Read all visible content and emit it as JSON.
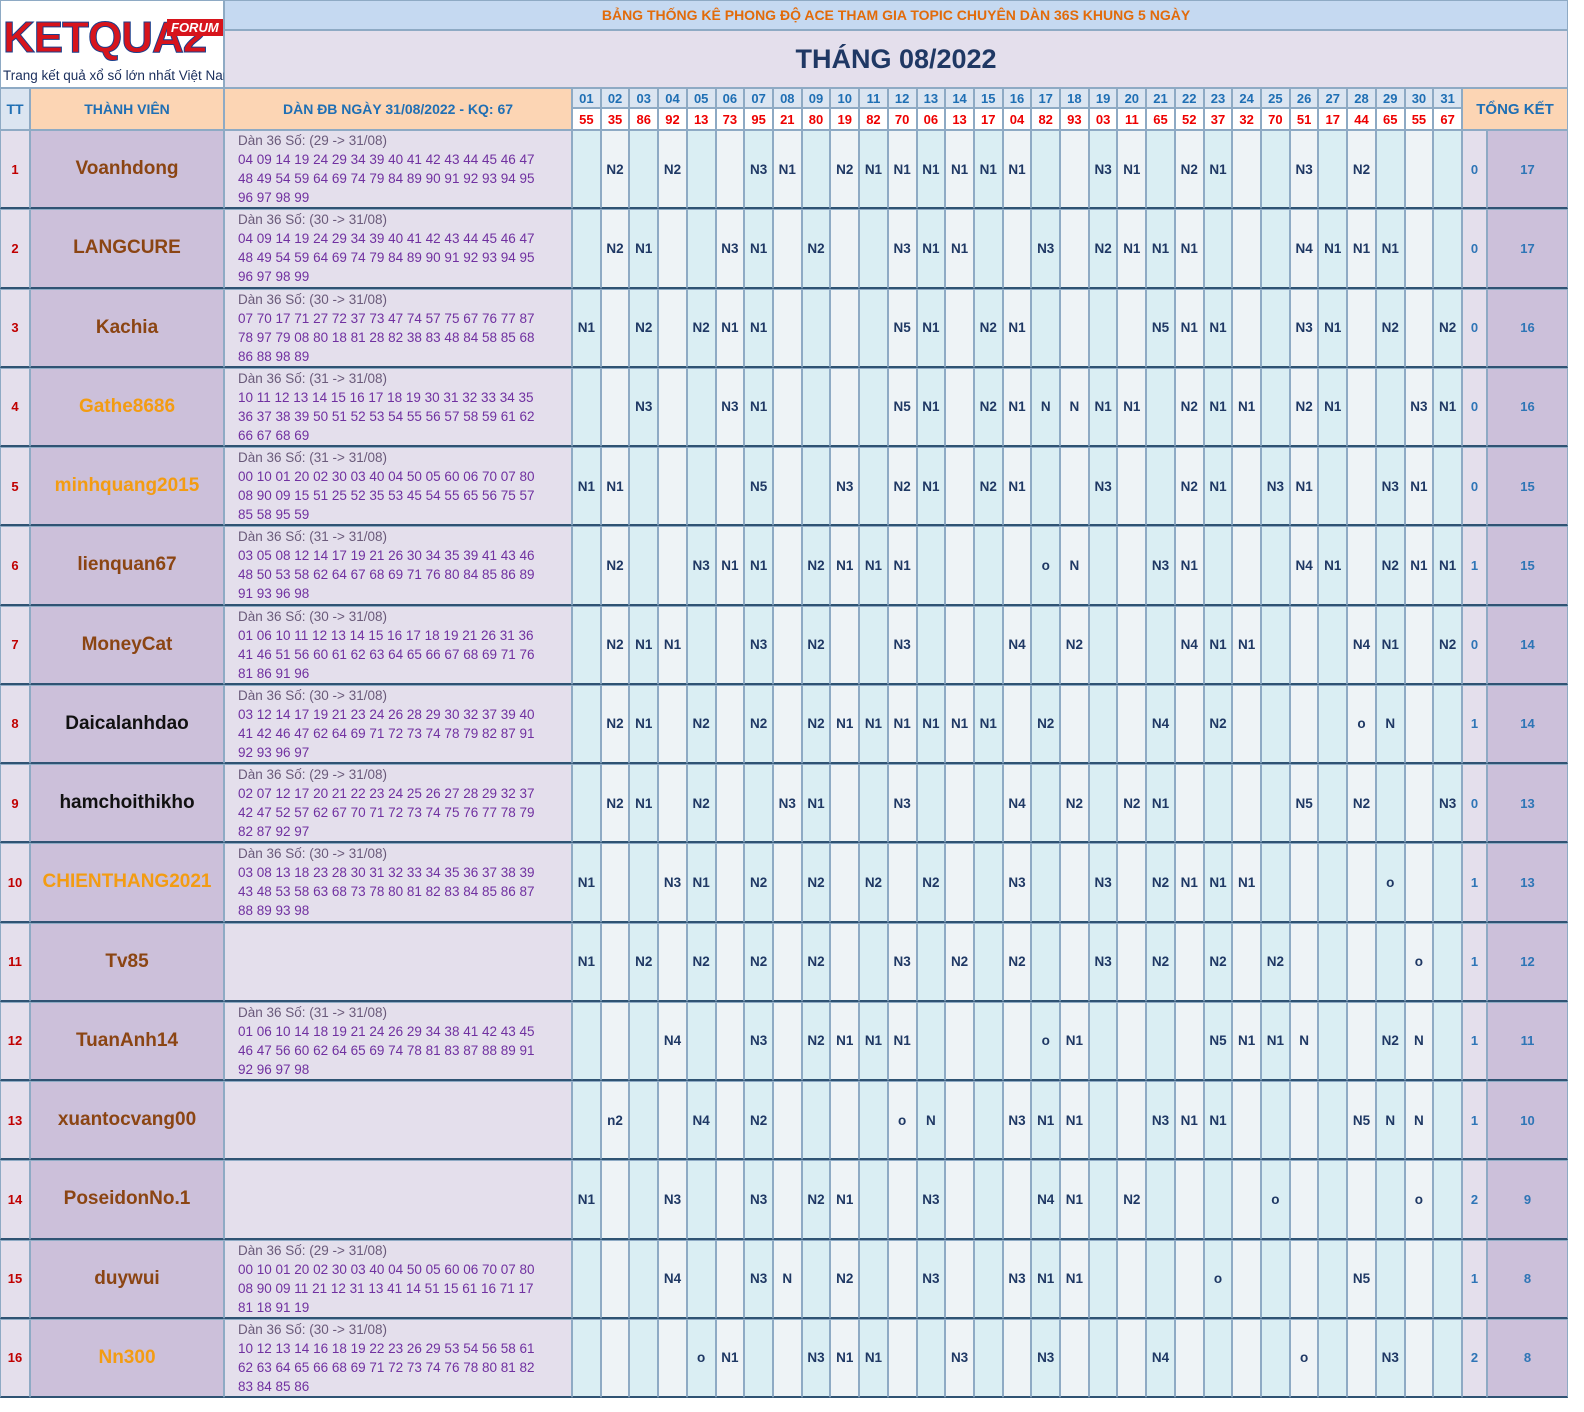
{
  "logo": {
    "brand": "KETQUA2",
    "badge": "FORUM",
    "tagline": "Trang kết quả xổ số lớn nhất Việt Nam"
  },
  "header": {
    "title": "BẢNG THỐNG KÊ PHONG ĐỘ ACE THAM GIA TOPIC CHUYÊN DÀN 36S KHUNG 5 NGÀY",
    "month": "THÁNG 08/2022"
  },
  "table": {
    "columns": {
      "tt": "TT",
      "member": "THÀNH VIÊN",
      "dan": "DÀN ĐB NGÀY 31/08/2022 - KQ: 67",
      "total": "TỔNG KẾT"
    },
    "days": [
      "01",
      "02",
      "03",
      "04",
      "05",
      "06",
      "07",
      "08",
      "09",
      "10",
      "11",
      "12",
      "13",
      "14",
      "15",
      "16",
      "17",
      "18",
      "19",
      "20",
      "21",
      "22",
      "23",
      "24",
      "25",
      "26",
      "27",
      "28",
      "29",
      "30",
      "31"
    ],
    "results": [
      "55",
      "35",
      "86",
      "92",
      "13",
      "73",
      "95",
      "21",
      "80",
      "19",
      "82",
      "70",
      "06",
      "13",
      "17",
      "04",
      "82",
      "93",
      "03",
      "11",
      "65",
      "52",
      "37",
      "32",
      "70",
      "51",
      "17",
      "44",
      "65",
      "55",
      "67"
    ],
    "rows": [
      {
        "tt": 1,
        "name": "Voanhdong",
        "color": "#8b4513",
        "dan": [
          "Dàn 36 Số: (29 -> 31/08)",
          "04 09 14 19 24 29 34 39 40 41 42 43 44 45 46 47",
          "48 49 54 59 64 69 74 79 84 89 90 91 92 93 94 95",
          "96 97 98 99"
        ],
        "marks": [
          null,
          "N2",
          null,
          "N2",
          null,
          null,
          "N3",
          "N1",
          null,
          "N2",
          "N1",
          "N1",
          "N1",
          "N1",
          "N1",
          "N1",
          null,
          null,
          "N3",
          "N1",
          null,
          "N2",
          "N1",
          null,
          null,
          "N3",
          null,
          "N2",
          null,
          null,
          null
        ],
        "total1": 0,
        "total2": 17
      },
      {
        "tt": 2,
        "name": "LANGCURE",
        "color": "#8b4513",
        "dan": [
          "Dàn 36 Số: (30 -> 31/08)",
          "04 09 14 19 24 29 34 39 40 41 42 43 44 45 46 47",
          "48 49 54 59 64 69 74 79 84 89 90 91 92 93 94 95",
          "96 97 98 99"
        ],
        "marks": [
          null,
          "N2",
          "N1",
          null,
          null,
          "N3",
          "N1",
          null,
          "N2",
          null,
          null,
          "N3",
          "N1",
          "N1",
          null,
          null,
          "N3",
          null,
          "N2",
          "N1",
          "N1",
          "N1",
          null,
          null,
          null,
          "N4",
          "N1",
          "N1",
          "N1",
          null,
          null
        ],
        "total1": 0,
        "total2": 17
      },
      {
        "tt": 3,
        "name": "Kachia",
        "color": "#8b4513",
        "dan": [
          "Dàn 36 Số: (30 -> 31/08)",
          "07 70 17 71 27 72 37 73 47 74 57 75 67 76 77 87",
          "78 97 79 08 80 18 81 28 82 38 83 48 84 58 85 68",
          "86 88 98 89"
        ],
        "marks": [
          "N1",
          null,
          "N2",
          null,
          "N2",
          "N1",
          "N1",
          null,
          null,
          null,
          null,
          "N5",
          "N1",
          null,
          "N2",
          "N1",
          null,
          null,
          null,
          null,
          "N5",
          "N1",
          "N1",
          null,
          null,
          "N3",
          "N1",
          null,
          "N2",
          null,
          "N2"
        ],
        "total1": 0,
        "total2": 16
      },
      {
        "tt": 4,
        "name": "Gathe8686",
        "color": "#f39c12",
        "dan": [
          "Dàn 36 Số: (31 -> 31/08)",
          "10 11 12 13 14 15 16 17 18 19 30 31 32 33 34 35",
          "36 37 38 39 50 51 52 53 54 55 56 57 58 59 61 62",
          "66 67 68 69"
        ],
        "marks": [
          null,
          null,
          "N3",
          null,
          null,
          "N3",
          "N1",
          null,
          null,
          null,
          null,
          "N5",
          "N1",
          null,
          "N2",
          "N1",
          "N",
          "N",
          "N1",
          "N1",
          null,
          "N2",
          "N1",
          "N1",
          null,
          "N2",
          "N1",
          null,
          null,
          "N3",
          "N1"
        ],
        "total1": 0,
        "total2": 16
      },
      {
        "tt": 5,
        "name": "minhquang2015",
        "color": "#f39c12",
        "dan": [
          "Dàn 36 Số: (31 -> 31/08)",
          "00 10 01 20 02 30 03 40 04 50 05 60 06 70 07 80",
          "08 90 09 15 51 25 52 35 53 45 54 55 65 56 75 57",
          "85 58 95 59"
        ],
        "marks": [
          "N1",
          "N1",
          null,
          null,
          null,
          null,
          "N5",
          null,
          null,
          "N3",
          null,
          "N2",
          "N1",
          null,
          "N2",
          "N1",
          null,
          null,
          "N3",
          null,
          null,
          "N2",
          "N1",
          null,
          "N3",
          "N1",
          null,
          null,
          "N3",
          "N1",
          null
        ],
        "total1": 0,
        "total2": 15
      },
      {
        "tt": 6,
        "name": "lienquan67",
        "color": "#8b4513",
        "dan": [
          "Dàn 36 Số: (31 -> 31/08)",
          "03 05 08 12 14 17 19 21 26 30 34 35 39 41 43 46",
          "48 50 53 58 62 64 67 68 69 71 76 80 84 85 86 89",
          "91 93 96 98"
        ],
        "marks": [
          null,
          "N2",
          null,
          null,
          "N3",
          "N1",
          "N1",
          null,
          "N2",
          "N1",
          "N1",
          "N1",
          null,
          null,
          null,
          null,
          "o",
          "N",
          null,
          null,
          "N3",
          "N1",
          null,
          null,
          null,
          "N4",
          "N1",
          null,
          "N2",
          "N1",
          "N1"
        ],
        "total1": 1,
        "total2": 15
      },
      {
        "tt": 7,
        "name": "MoneyCat",
        "color": "#8b4513",
        "dan": [
          "Dàn 36 Số: (30 -> 31/08)",
          "01 06 10 11 12 13 14 15 16 17 18 19 21 26 31 36",
          "41 46 51 56 60 61 62 63 64 65 66 67 68 69 71 76",
          "81 86 91 96"
        ],
        "marks": [
          null,
          "N2",
          "N1",
          "N1",
          null,
          null,
          "N3",
          null,
          "N2",
          null,
          null,
          "N3",
          null,
          null,
          null,
          "N4",
          null,
          "N2",
          null,
          null,
          null,
          "N4",
          "N1",
          "N1",
          null,
          null,
          null,
          "N4",
          "N1",
          null,
          "N2"
        ],
        "total1": 0,
        "total2": 14
      },
      {
        "tt": 8,
        "name": "Daicalanhdao",
        "color": "#111111",
        "dan": [
          "Dàn 36 Số: (30 -> 31/08)",
          "03 12 14 17 19 21 23 24 26 28 29 30 32 37 39 40",
          "41 42 46 47 62 64 69 71 72 73 74 78 79 82 87 91",
          "92 93 96 97"
        ],
        "marks": [
          null,
          "N2",
          "N1",
          null,
          "N2",
          null,
          "N2",
          null,
          "N2",
          "N1",
          "N1",
          "N1",
          "N1",
          "N1",
          "N1",
          null,
          "N2",
          null,
          null,
          null,
          "N4",
          null,
          "N2",
          null,
          null,
          null,
          null,
          "o",
          "N",
          null,
          null
        ],
        "total1": 1,
        "total2": 14
      },
      {
        "tt": 9,
        "name": "hamchoithikho",
        "color": "#111111",
        "dan": [
          "Dàn 36 Số: (29 -> 31/08)",
          "02 07 12 17 20 21 22 23 24 25 26 27 28 29 32 37",
          "42 47 52 57 62 67 70 71 72 73 74 75 76 77 78 79",
          "82 87 92 97"
        ],
        "marks": [
          null,
          "N2",
          "N1",
          null,
          "N2",
          null,
          null,
          "N3",
          "N1",
          null,
          null,
          "N3",
          null,
          null,
          null,
          "N4",
          null,
          "N2",
          null,
          "N2",
          "N1",
          null,
          null,
          null,
          null,
          "N5",
          null,
          "N2",
          null,
          null,
          "N3"
        ],
        "total1": 0,
        "total2": 13
      },
      {
        "tt": 10,
        "name": "CHIENTHANG2021",
        "color": "#f39c12",
        "dan": [
          "Dàn 36 Số: (30 -> 31/08)",
          "03 08 13 18 23 28 30 31 32 33 34 35 36 37 38 39",
          "43 48 53 58 63 68 73 78 80 81 82 83 84 85 86 87",
          "88 89 93 98"
        ],
        "marks": [
          "N1",
          null,
          null,
          "N3",
          "N1",
          null,
          "N2",
          null,
          "N2",
          null,
          "N2",
          null,
          "N2",
          null,
          null,
          "N3",
          null,
          null,
          "N3",
          null,
          "N2",
          "N1",
          "N1",
          "N1",
          null,
          null,
          null,
          null,
          "o",
          null,
          null
        ],
        "total1": 1,
        "total2": 13
      },
      {
        "tt": 11,
        "name": "Tv85",
        "color": "#8b4513",
        "dan": [],
        "marks": [
          "N1",
          null,
          "N2",
          null,
          "N2",
          null,
          "N2",
          null,
          "N2",
          null,
          null,
          "N3",
          null,
          "N2",
          null,
          "N2",
          null,
          null,
          "N3",
          null,
          "N2",
          null,
          "N2",
          null,
          "N2",
          null,
          null,
          null,
          null,
          "o",
          null
        ],
        "total1": 1,
        "total2": 12
      },
      {
        "tt": 12,
        "name": "TuanAnh14",
        "color": "#8b4513",
        "dan": [
          "Dàn 36 Số: (31 -> 31/08)",
          "01 06 10 14 18 19 21 24 26 29 34 38 41 42 43 45",
          "46 47 56 60 62 64 65 69 74 78 81 83 87 88 89 91",
          "92 96 97 98"
        ],
        "marks": [
          null,
          null,
          null,
          "N4",
          null,
          null,
          "N3",
          null,
          "N2",
          "N1",
          "N1",
          "N1",
          null,
          null,
          null,
          null,
          "o",
          "N1",
          null,
          null,
          null,
          null,
          "N5",
          "N1",
          "N1",
          "N",
          null,
          null,
          "N2",
          "N",
          null
        ],
        "total1": 1,
        "total2": 11
      },
      {
        "tt": 13,
        "name": "xuantocvang00",
        "color": "#8b4513",
        "dan": [],
        "marks": [
          null,
          "n2",
          null,
          null,
          "N4",
          null,
          "N2",
          null,
          null,
          null,
          null,
          "o",
          "N",
          null,
          null,
          "N3",
          "N1",
          "N1",
          null,
          null,
          "N3",
          "N1",
          "N1",
          null,
          null,
          null,
          null,
          "N5",
          "N",
          "N",
          null
        ],
        "total1": 1,
        "total2": 10
      },
      {
        "tt": 14,
        "name": "PoseidonNo.1",
        "color": "#8b4513",
        "dan": [],
        "marks": [
          "N1",
          null,
          null,
          "N3",
          null,
          null,
          "N3",
          null,
          "N2",
          "N1",
          null,
          null,
          "N3",
          null,
          null,
          null,
          "N4",
          "N1",
          null,
          "N2",
          null,
          null,
          null,
          null,
          "o",
          null,
          null,
          null,
          null,
          "o",
          null
        ],
        "total1": 2,
        "total2": 9
      },
      {
        "tt": 15,
        "name": "duywui",
        "color": "#8b4513",
        "dan": [
          "Dàn 36 Số: (29 -> 31/08)",
          "00 10 01 20 02 30 03 40 04 50 05 60 06 70 07 80",
          "08 90 09 11 21 12 31 13 41 14 51 15 61 16 71 17",
          "81 18 91 19"
        ],
        "marks": [
          null,
          null,
          null,
          "N4",
          null,
          null,
          "N3",
          "N",
          null,
          "N2",
          null,
          null,
          "N3",
          null,
          null,
          "N3",
          "N1",
          "N1",
          null,
          null,
          null,
          null,
          "o",
          null,
          null,
          null,
          null,
          "N5",
          null,
          null,
          null
        ],
        "total1": 1,
        "total2": 8
      },
      {
        "tt": 16,
        "name": "Nn300",
        "color": "#f39c12",
        "dan": [
          "Dàn 36 Số: (30 -> 31/08)",
          "10 12 13 14 16 18 19 22 23 26 29 53 54 56 58 61",
          "62 63 64 65 66 68 69 71 72 73 74 76 78 80 81 82",
          "83 84 85 86"
        ],
        "marks": [
          null,
          null,
          null,
          null,
          "o",
          "N1",
          null,
          null,
          "N3",
          "N1",
          "N1",
          null,
          null,
          "N3",
          null,
          null,
          "N3",
          null,
          null,
          null,
          "N4",
          null,
          null,
          null,
          null,
          "o",
          null,
          null,
          "N3",
          null,
          null
        ],
        "total1": 2,
        "total2": 8
      }
    ]
  }
}
